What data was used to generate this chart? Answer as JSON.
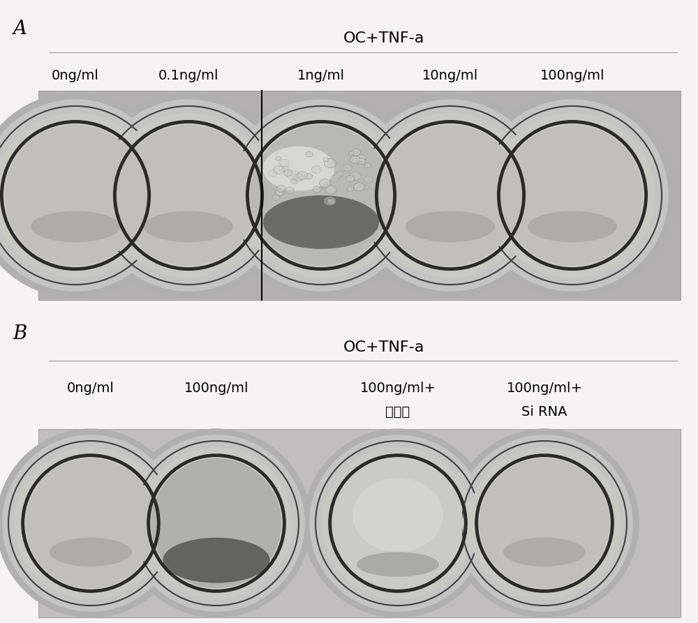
{
  "background_color": "#f0eeee",
  "panel_A_label": "A",
  "panel_B_label": "B",
  "panel_A_title": "OC+TNF-a",
  "panel_B_title": "OC+TNF-a",
  "panel_A_columns": [
    "0ng/ml",
    "0.1ng/ml",
    "1ng/ml",
    "10ng/ml",
    "100ng/ml"
  ],
  "panel_B_labels_line1": [
    "0ng/ml",
    "100ng/ml",
    "100ng/ml+",
    "100ng/ml+"
  ],
  "panel_B_labels_line2": [
    "",
    "",
    "对照组",
    "Si RNA"
  ],
  "figure_width": 10.0,
  "figure_height": 8.93,
  "label_fontsize": 20,
  "title_fontsize": 16,
  "col_label_fontsize": 14,
  "line_color": "#999999",
  "strip_bg": "#b8b8b8",
  "strip_bg_b": "#c0c0c0"
}
